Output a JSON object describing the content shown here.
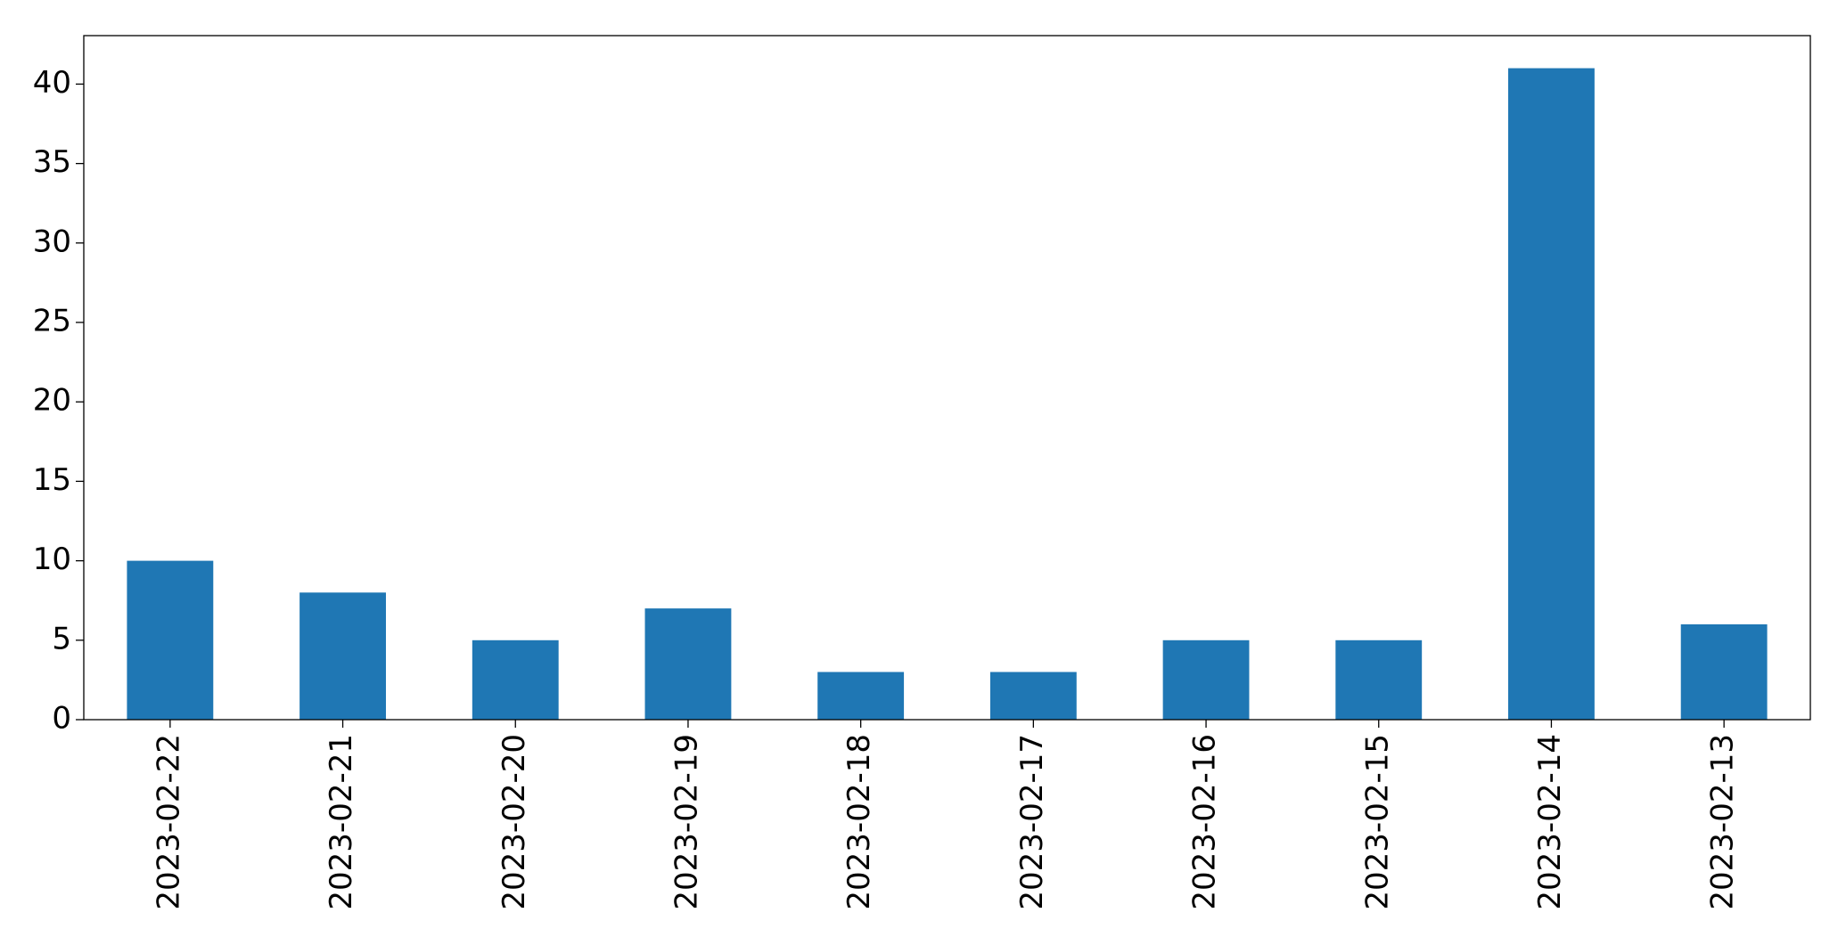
{
  "chart_data": {
    "type": "bar",
    "categories": [
      "2023-02-22",
      "2023-02-21",
      "2023-02-20",
      "2023-02-19",
      "2023-02-18",
      "2023-02-17",
      "2023-02-16",
      "2023-02-15",
      "2023-02-14",
      "2023-02-13"
    ],
    "values": [
      10,
      8,
      5,
      7,
      3,
      3,
      5,
      5,
      41,
      6
    ],
    "color": "#1f77b4",
    "ylim": [
      0,
      43.05
    ],
    "yticks": [
      0,
      5,
      10,
      15,
      20,
      25,
      30,
      35,
      40
    ],
    "grid": false
  }
}
